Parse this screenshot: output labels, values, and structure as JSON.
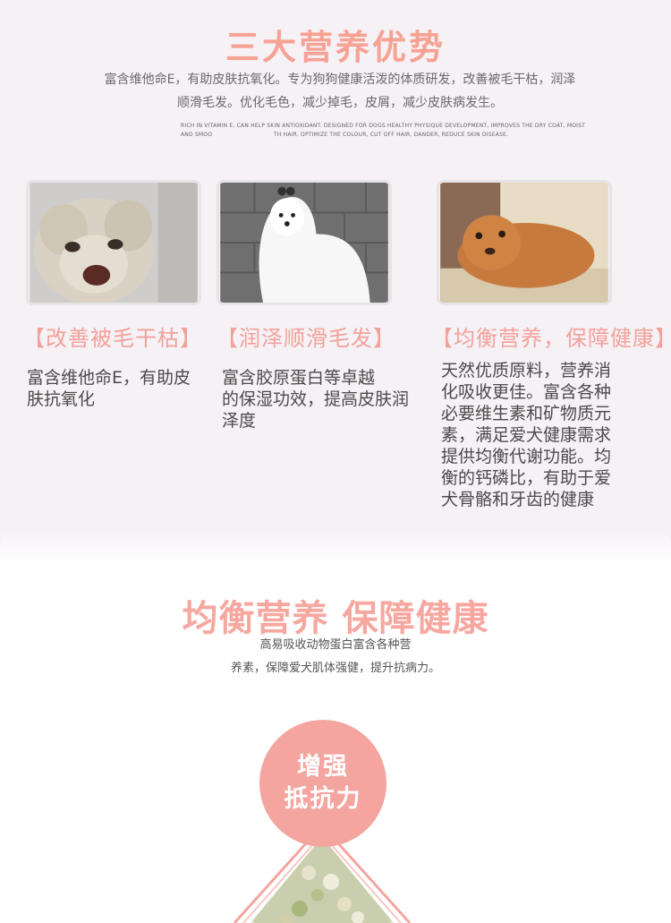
{
  "header": {
    "title": "三大营养优势",
    "intro_line1": "富含维他命E，有助皮肤抗氧化。专为狗狗健康活泼的体质研发，改善被毛干枯，润泽",
    "intro_line2": "顺滑毛发。优化毛色，减少掉毛，皮屑，减少皮肤病发生。",
    "en_line1": "RICH IN VITAMIN E, CAN HELP SKIN ANTIOXIDANT. DESIGNED FOR DOGS HEALTHY PHYSIQUE DEVELOPMENT, IMPROVES THE DRY COAT, MOIST AND SMOO",
    "en_line2": "TH HAIR. OPTIMIZE THE COLOUR, CUT OFF HAIR, DANDER, REDUCE SKIN DISEASE."
  },
  "features": [
    {
      "title": "【改善被毛干枯】",
      "desc_lines": [
        "富含维他命E，有助皮",
        "肤抗氧化"
      ]
    },
    {
      "title": "【润泽顺滑毛发】",
      "desc_lines": [
        "富含胶原蛋白等卓越",
        "的保湿功效，提高皮肤润",
        "泽度"
      ]
    },
    {
      "title": "【均衡营养，保障健康】",
      "desc_lines": [
        "天然优质原料，营养消",
        "化吸收更佳。富含各种",
        "必要维生素和矿物质元",
        "素，满足爱犬健康需求",
        "提供均衡代谢功能。均",
        "衡的钙磷比，有助于爱",
        "犬骨骼和牙齿的健康"
      ]
    }
  ],
  "section2": {
    "title": "均衡营养 保障健康",
    "sub_line1": "高易吸收动物蛋白富含各种营",
    "sub_line2": "养素，保障爱犬肌体强健，提升抗病力。",
    "badge_line1": "增强",
    "badge_line2": "抵抗力"
  },
  "colors": {
    "accent": "#f6a294",
    "badge": "#f4a5a0",
    "top_bg": "#f5f1f5"
  }
}
